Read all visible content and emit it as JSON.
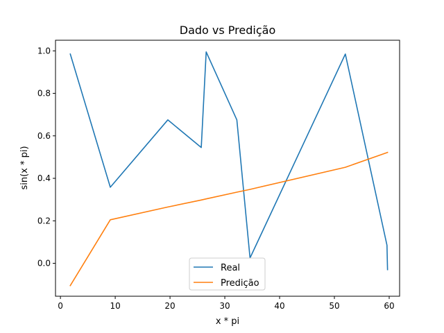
{
  "chart_data": {
    "type": "line",
    "title": "Dado vs Predição",
    "xlabel": "x * pi",
    "ylabel": "sin(x * pi)",
    "xlim": [
      -0.9,
      61.9
    ],
    "ylim": [
      -0.155,
      1.05
    ],
    "xticks": [
      0,
      10,
      20,
      30,
      40,
      50,
      60
    ],
    "yticks": [
      0.0,
      0.2,
      0.4,
      0.6,
      0.8,
      1.0
    ],
    "xtick_labels": [
      "0",
      "10",
      "20",
      "30",
      "40",
      "50",
      "60"
    ],
    "ytick_labels": [
      "0.0",
      "0.2",
      "0.4",
      "0.6",
      "0.8",
      "1.0"
    ],
    "legend_position": "bottom-center",
    "grid": false,
    "series": [
      {
        "name": "Real",
        "color": "#1f77b4",
        "x": [
          1.8,
          9.1,
          19.6,
          25.7,
          26.6,
          32.2,
          34.6,
          52.0,
          59.6,
          59.7
        ],
        "y": [
          0.985,
          0.358,
          0.675,
          0.545,
          0.995,
          0.675,
          0.025,
          0.985,
          0.085,
          -0.03
        ]
      },
      {
        "name": "Predição",
        "color": "#ff7f0e",
        "x": [
          1.8,
          9.1,
          19.6,
          25.7,
          26.6,
          32.2,
          34.6,
          52.0,
          59.6,
          59.7
        ],
        "y": [
          -0.105,
          0.205,
          0.265,
          0.298,
          0.303,
          0.335,
          0.348,
          0.452,
          0.521,
          0.522
        ]
      }
    ]
  }
}
